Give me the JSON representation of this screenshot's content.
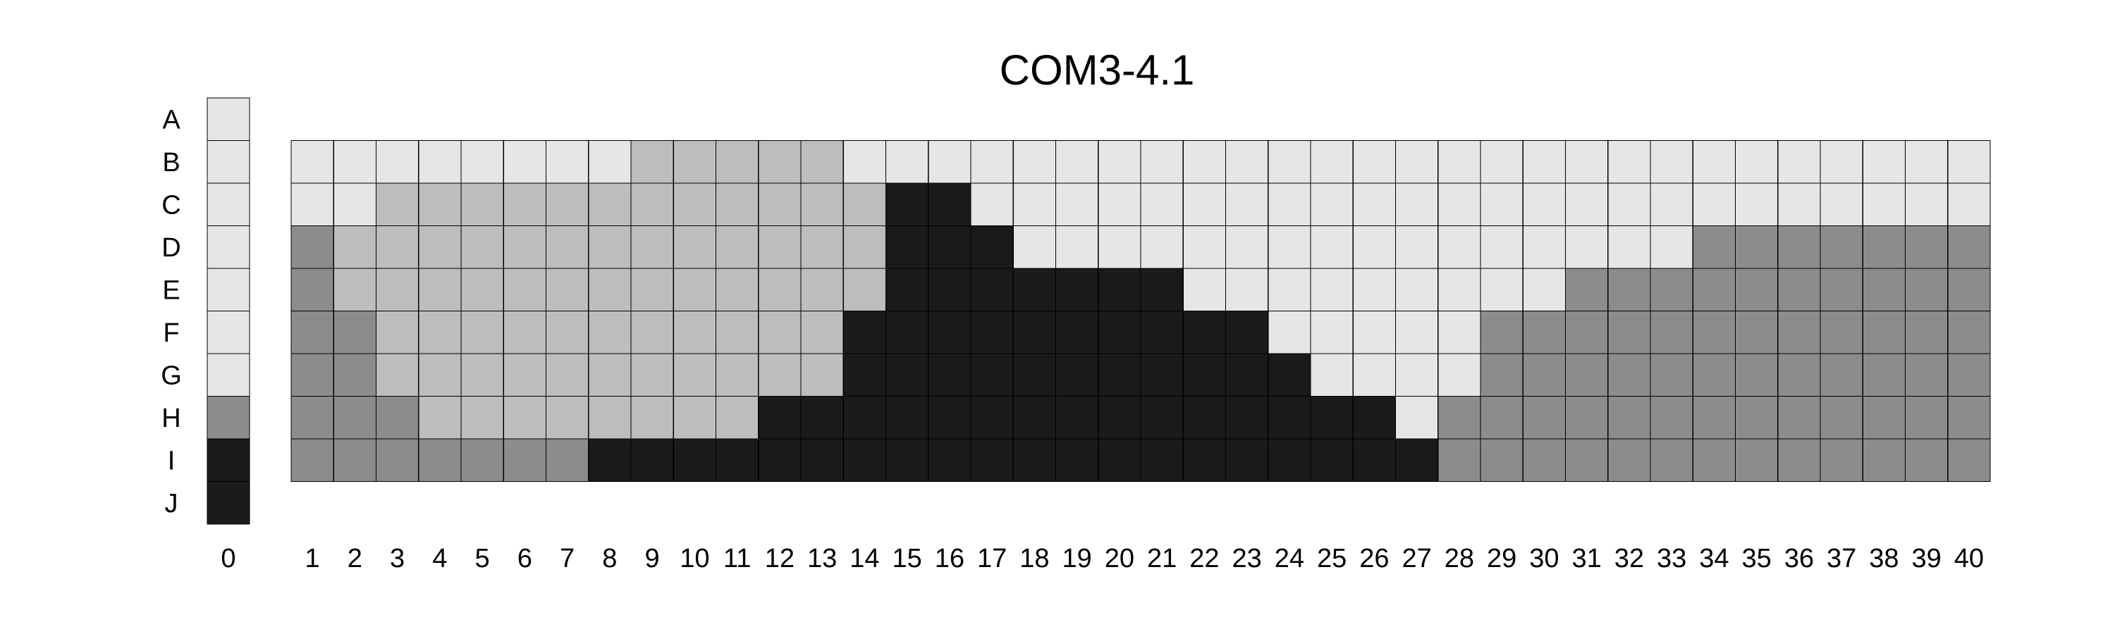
{
  "chart_data": {
    "type": "heatmap",
    "title": "COM3-4.1",
    "row_labels": [
      "A",
      "B",
      "C",
      "D",
      "E",
      "F",
      "G",
      "H",
      "I",
      "J"
    ],
    "reference_column": {
      "label": "0",
      "levels": [
        0,
        0,
        0,
        0,
        0,
        0,
        0,
        2,
        3,
        3
      ]
    },
    "grid_rows": [
      "B",
      "C",
      "D",
      "E",
      "F",
      "G",
      "H",
      "I"
    ],
    "grid_columns": [
      "1",
      "2",
      "3",
      "4",
      "5",
      "6",
      "7",
      "8",
      "9",
      "10",
      "11",
      "12",
      "13",
      "14",
      "15",
      "16",
      "17",
      "18",
      "19",
      "20",
      "21",
      "22",
      "23",
      "24",
      "25",
      "26",
      "27",
      "28",
      "29",
      "30",
      "31",
      "32",
      "33",
      "34",
      "35",
      "36",
      "37",
      "38",
      "39",
      "40"
    ],
    "level_colors": [
      "#e6e6e6",
      "#bdbdbd",
      "#8c8c8c",
      "#1a1a1a"
    ],
    "grid": [
      [
        0,
        0,
        0,
        0,
        0,
        0,
        0,
        0,
        1,
        1,
        1,
        1,
        1,
        0,
        0,
        0,
        0,
        0,
        0,
        0,
        0,
        0,
        0,
        0,
        0,
        0,
        0,
        0,
        0,
        0,
        0,
        0,
        0,
        0,
        0,
        0,
        0,
        0,
        0,
        0
      ],
      [
        0,
        0,
        1,
        1,
        1,
        1,
        1,
        1,
        1,
        1,
        1,
        1,
        1,
        1,
        3,
        3,
        0,
        0,
        0,
        0,
        0,
        0,
        0,
        0,
        0,
        0,
        0,
        0,
        0,
        0,
        0,
        0,
        0,
        0,
        0,
        0,
        0,
        0,
        0,
        0
      ],
      [
        2,
        1,
        1,
        1,
        1,
        1,
        1,
        1,
        1,
        1,
        1,
        1,
        1,
        1,
        3,
        3,
        3,
        0,
        0,
        0,
        0,
        0,
        0,
        0,
        0,
        0,
        0,
        0,
        0,
        0,
        0,
        0,
        0,
        2,
        2,
        2,
        2,
        2,
        2,
        2
      ],
      [
        2,
        1,
        1,
        1,
        1,
        1,
        1,
        1,
        1,
        1,
        1,
        1,
        1,
        1,
        3,
        3,
        3,
        3,
        3,
        3,
        3,
        0,
        0,
        0,
        0,
        0,
        0,
        0,
        0,
        0,
        2,
        2,
        2,
        2,
        2,
        2,
        2,
        2,
        2,
        2
      ],
      [
        2,
        2,
        1,
        1,
        1,
        1,
        1,
        1,
        1,
        1,
        1,
        1,
        1,
        3,
        3,
        3,
        3,
        3,
        3,
        3,
        3,
        3,
        3,
        0,
        0,
        0,
        0,
        0,
        2,
        2,
        2,
        2,
        2,
        2,
        2,
        2,
        2,
        2,
        2,
        2
      ],
      [
        2,
        2,
        1,
        1,
        1,
        1,
        1,
        1,
        1,
        1,
        1,
        1,
        1,
        3,
        3,
        3,
        3,
        3,
        3,
        3,
        3,
        3,
        3,
        3,
        0,
        0,
        0,
        0,
        2,
        2,
        2,
        2,
        2,
        2,
        2,
        2,
        2,
        2,
        2,
        2
      ],
      [
        2,
        2,
        2,
        1,
        1,
        1,
        1,
        1,
        1,
        1,
        1,
        3,
        3,
        3,
        3,
        3,
        3,
        3,
        3,
        3,
        3,
        3,
        3,
        3,
        3,
        3,
        0,
        2,
        2,
        2,
        2,
        2,
        2,
        2,
        2,
        2,
        2,
        2,
        2,
        2
      ],
      [
        2,
        2,
        2,
        2,
        2,
        2,
        2,
        3,
        3,
        3,
        3,
        3,
        3,
        3,
        3,
        3,
        3,
        3,
        3,
        3,
        3,
        3,
        3,
        3,
        3,
        3,
        3,
        2,
        2,
        2,
        2,
        2,
        2,
        2,
        2,
        2,
        2,
        2,
        2,
        2
      ]
    ]
  }
}
